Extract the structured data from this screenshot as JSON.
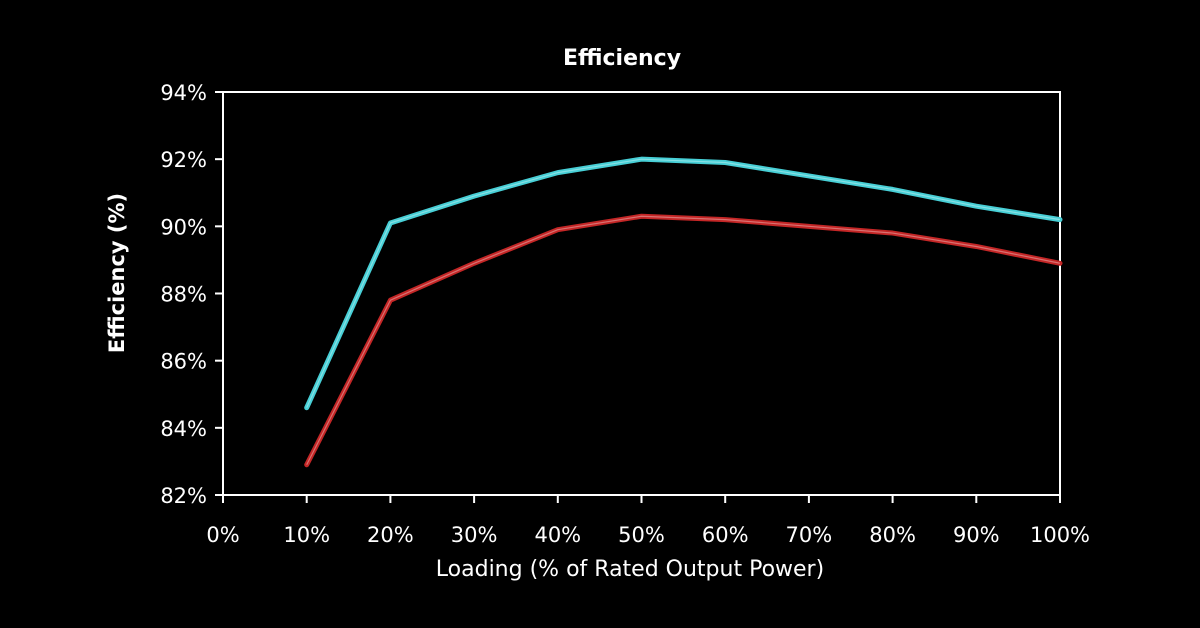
{
  "chart_data": {
    "type": "line",
    "title": "Efficiency",
    "xlabel": "Loading (% of Rated Output Power)",
    "ylabel": "Efficiency (%)",
    "x": [
      10,
      20,
      30,
      40,
      50,
      60,
      70,
      80,
      90,
      100
    ],
    "xlim": [
      0,
      100
    ],
    "ylim": [
      82,
      94
    ],
    "x_tick_labels": [
      "0%",
      "10%",
      "20%",
      "30%",
      "40%",
      "50%",
      "60%",
      "70%",
      "80%",
      "90%",
      "100%"
    ],
    "y_tick_labels": [
      "82%",
      "84%",
      "86%",
      "88%",
      "90%",
      "92%",
      "94%"
    ],
    "grid": false,
    "series": [
      {
        "color": "#47cfd6",
        "values": [
          84.6,
          90.1,
          90.9,
          91.6,
          92.0,
          91.9,
          91.5,
          91.1,
          90.6,
          90.2
        ]
      },
      {
        "color": "#c42626",
        "values": [
          82.9,
          87.8,
          88.9,
          89.9,
          90.3,
          90.2,
          90.0,
          89.8,
          89.4,
          88.9
        ]
      }
    ]
  }
}
